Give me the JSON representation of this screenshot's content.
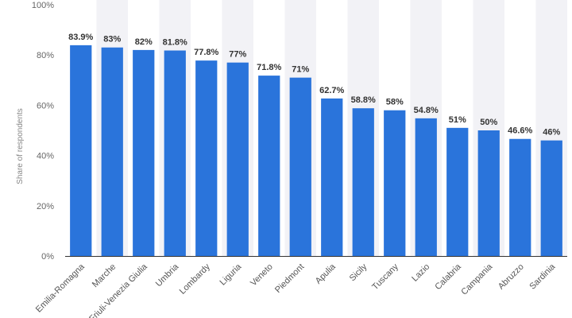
{
  "chart_data": {
    "type": "bar",
    "title": "",
    "xlabel": "",
    "ylabel": "Share of respondents",
    "ylim": [
      0,
      100
    ],
    "yticks": [
      0,
      20,
      40,
      60,
      80,
      100
    ],
    "ytick_labels": [
      "0%",
      "20%",
      "40%",
      "60%",
      "80%",
      "100%"
    ],
    "grid": "vertical-bands",
    "legend": "none",
    "colors": {
      "bar": "#2a74db",
      "band": "#f2f2f6",
      "axis": "#333333"
    },
    "categories": [
      "Emilia-Romagna",
      "Marche",
      "Friuli-Venezia Giulia",
      "Umbria",
      "Lombardy",
      "Liguria",
      "Veneto",
      "Piedmont",
      "Apulia",
      "Sicily",
      "Tuscany",
      "Lazio",
      "Calabria",
      "Campania",
      "Abruzzo",
      "Sardinia"
    ],
    "category_labels_visible": [
      "Emilia-Romagna",
      "Marche",
      "Friuli-Venezia Giulia",
      "Umbria",
      "Lombardy",
      "Liguria",
      "Veneto",
      "Piedmont",
      "Apulia",
      "Sicily",
      "Tuscany",
      "Lazio",
      "Calabria",
      "Campania",
      "Abruzzo",
      "Sardinia"
    ],
    "values": [
      83.9,
      83,
      82,
      81.8,
      77.8,
      77,
      71.8,
      71,
      62.7,
      58.8,
      58,
      54.8,
      51,
      50,
      46.6,
      46
    ],
    "value_labels": [
      "83.9%",
      "83%",
      "82%",
      "81.8%",
      "77.8%",
      "77%",
      "71.8%",
      "71%",
      "62.7%",
      "58.8%",
      "58%",
      "54.8%",
      "51%",
      "50%",
      "46.6%",
      "46%"
    ]
  }
}
